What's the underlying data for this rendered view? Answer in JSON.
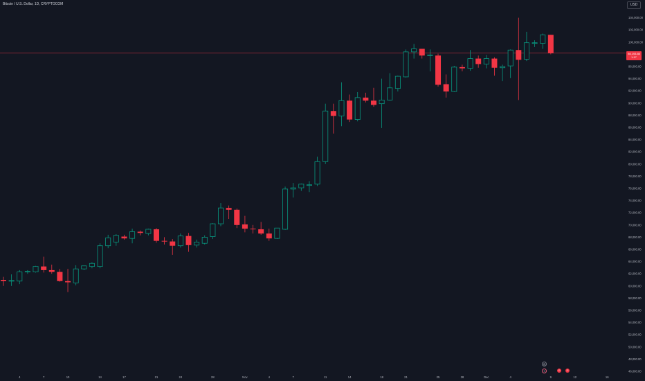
{
  "header": {
    "title": "Bitcoin / U.S. Dollar, 1D, CRYPTOCOM",
    "currency_button": "USD"
  },
  "price_tag": {
    "price": "98,193.85",
    "countdown": "1:17"
  },
  "events": [
    {
      "icon": "dividend-icon",
      "glyph": "◎",
      "color": "#787b86"
    },
    {
      "icon": "flash-icon",
      "glyph": "ϟ",
      "color": "#e05b7a"
    },
    {
      "icon": "earnings-icon",
      "glyph": "☺",
      "color": "#f23645"
    },
    {
      "icon": "earnings-icon",
      "glyph": "☺",
      "color": "#f23645"
    }
  ],
  "colors": {
    "up": "#089981",
    "down": "#f23645",
    "background": "#131722",
    "axis_text": "#b2b5be",
    "price_line": "#f23645"
  },
  "chart_data": {
    "type": "candlestick",
    "title": "Bitcoin / U.S. Dollar, 1D, CRYPTOCOM",
    "ylim": [
      46000,
      106000
    ],
    "y_ticks": [
      "46,000.00",
      "48,000.00",
      "50,000.00",
      "52,000.00",
      "54,000.00",
      "56,000.00",
      "58,000.00",
      "60,000.00",
      "62,000.00",
      "64,000.00",
      "66,000.00",
      "68,000.00",
      "70,000.00",
      "72,000.00",
      "74,000.00",
      "76,000.00",
      "78,000.00",
      "80,000.00",
      "82,000.00",
      "84,000.00",
      "86,000.00",
      "88,000.00",
      "90,000.00",
      "92,000.00",
      "94,000.00",
      "96,000.00",
      "98,000.00",
      "100,000.00",
      "102,000.00",
      "104,000.00"
    ],
    "x_ticks": [
      {
        "label": "4",
        "index": 2
      },
      {
        "label": "7",
        "index": 5
      },
      {
        "label": "10",
        "index": 8
      },
      {
        "label": "14",
        "index": 12
      },
      {
        "label": "17",
        "index": 15
      },
      {
        "label": "21",
        "index": 19
      },
      {
        "label": "24",
        "index": 22
      },
      {
        "label": "28",
        "index": 26
      },
      {
        "label": "Nov",
        "index": 30
      },
      {
        "label": "4",
        "index": 33
      },
      {
        "label": "7",
        "index": 36
      },
      {
        "label": "11",
        "index": 40
      },
      {
        "label": "14",
        "index": 43
      },
      {
        "label": "18",
        "index": 47
      },
      {
        "label": "21",
        "index": 50
      },
      {
        "label": "25",
        "index": 54
      },
      {
        "label": "28",
        "index": 57
      },
      {
        "label": "Dec",
        "index": 60
      },
      {
        "label": "4",
        "index": 63
      },
      {
        "label": "9",
        "index": 68
      },
      {
        "label": "12",
        "index": 71
      },
      {
        "label": "16",
        "index": 75
      }
    ],
    "current_price": 98193.85,
    "candles": [
      {
        "o": 61000,
        "h": 61500,
        "l": 60000,
        "c": 60800
      },
      {
        "o": 60800,
        "h": 61900,
        "l": 60000,
        "c": 60900
      },
      {
        "o": 60800,
        "h": 62600,
        "l": 60300,
        "c": 62300
      },
      {
        "o": 62300,
        "h": 62600,
        "l": 62000,
        "c": 62400
      },
      {
        "o": 62300,
        "h": 63300,
        "l": 62200,
        "c": 63200
      },
      {
        "o": 63200,
        "h": 64800,
        "l": 62200,
        "c": 62600
      },
      {
        "o": 62600,
        "h": 63500,
        "l": 62000,
        "c": 62300
      },
      {
        "o": 62300,
        "h": 62800,
        "l": 60700,
        "c": 60800
      },
      {
        "o": 60800,
        "h": 62800,
        "l": 59000,
        "c": 60600
      },
      {
        "o": 60500,
        "h": 63400,
        "l": 60100,
        "c": 62800
      },
      {
        "o": 62800,
        "h": 63300,
        "l": 62600,
        "c": 63300
      },
      {
        "o": 63200,
        "h": 63900,
        "l": 62900,
        "c": 63700
      },
      {
        "o": 63200,
        "h": 67000,
        "l": 62900,
        "c": 66600
      },
      {
        "o": 66600,
        "h": 68400,
        "l": 66200,
        "c": 67900
      },
      {
        "o": 67200,
        "h": 68500,
        "l": 66600,
        "c": 68300
      },
      {
        "o": 68100,
        "h": 68400,
        "l": 67600,
        "c": 67800
      },
      {
        "o": 67800,
        "h": 69400,
        "l": 67000,
        "c": 68900
      },
      {
        "o": 68900,
        "h": 69100,
        "l": 68300,
        "c": 68700
      },
      {
        "o": 68600,
        "h": 69400,
        "l": 68300,
        "c": 69300
      },
      {
        "o": 69300,
        "h": 69500,
        "l": 67100,
        "c": 67400
      },
      {
        "o": 67400,
        "h": 68000,
        "l": 66800,
        "c": 67300
      },
      {
        "o": 67300,
        "h": 67700,
        "l": 65100,
        "c": 66600
      },
      {
        "o": 66600,
        "h": 68600,
        "l": 66300,
        "c": 68200
      },
      {
        "o": 68200,
        "h": 68700,
        "l": 65600,
        "c": 66700
      },
      {
        "o": 66700,
        "h": 67600,
        "l": 66300,
        "c": 67200
      },
      {
        "o": 67000,
        "h": 68300,
        "l": 66800,
        "c": 68000
      },
      {
        "o": 68100,
        "h": 70300,
        "l": 67700,
        "c": 70200
      },
      {
        "o": 70200,
        "h": 73600,
        "l": 69800,
        "c": 72800
      },
      {
        "o": 72800,
        "h": 73200,
        "l": 71000,
        "c": 72500
      },
      {
        "o": 72500,
        "h": 72700,
        "l": 69500,
        "c": 70000
      },
      {
        "o": 70100,
        "h": 71500,
        "l": 68800,
        "c": 69400
      },
      {
        "o": 69400,
        "h": 70000,
        "l": 68600,
        "c": 69300
      },
      {
        "o": 69300,
        "h": 70500,
        "l": 68400,
        "c": 68600
      },
      {
        "o": 68600,
        "h": 69400,
        "l": 67400,
        "c": 67800
      },
      {
        "o": 67800,
        "h": 69500,
        "l": 67700,
        "c": 69500
      },
      {
        "o": 69300,
        "h": 76300,
        "l": 69200,
        "c": 75900
      },
      {
        "o": 75900,
        "h": 76900,
        "l": 74500,
        "c": 76100
      },
      {
        "o": 76100,
        "h": 76800,
        "l": 75600,
        "c": 76700
      },
      {
        "o": 76600,
        "h": 77200,
        "l": 75400,
        "c": 76600
      },
      {
        "o": 76700,
        "h": 81200,
        "l": 76400,
        "c": 80400
      },
      {
        "o": 80400,
        "h": 89900,
        "l": 80000,
        "c": 88700
      },
      {
        "o": 88700,
        "h": 89900,
        "l": 85000,
        "c": 87900
      },
      {
        "o": 87900,
        "h": 93400,
        "l": 86200,
        "c": 90400
      },
      {
        "o": 90400,
        "h": 91400,
        "l": 86900,
        "c": 87300
      },
      {
        "o": 87300,
        "h": 91800,
        "l": 87000,
        "c": 90900
      },
      {
        "o": 90900,
        "h": 91700,
        "l": 90100,
        "c": 90400
      },
      {
        "o": 90400,
        "h": 92500,
        "l": 89400,
        "c": 89700
      },
      {
        "o": 89900,
        "h": 94000,
        "l": 85900,
        "c": 90500
      },
      {
        "o": 90500,
        "h": 94900,
        "l": 90400,
        "c": 92500
      },
      {
        "o": 92400,
        "h": 94500,
        "l": 91900,
        "c": 94400
      },
      {
        "o": 94300,
        "h": 98800,
        "l": 94200,
        "c": 98400
      },
      {
        "o": 98400,
        "h": 99700,
        "l": 97300,
        "c": 98900
      },
      {
        "o": 98900,
        "h": 98900,
        "l": 97300,
        "c": 97800
      },
      {
        "o": 97800,
        "h": 98800,
        "l": 95200,
        "c": 97900
      },
      {
        "o": 97800,
        "h": 98100,
        "l": 92700,
        "c": 93000
      },
      {
        "o": 93100,
        "h": 94700,
        "l": 90900,
        "c": 91900
      },
      {
        "o": 91900,
        "h": 96100,
        "l": 91800,
        "c": 95900
      },
      {
        "o": 95900,
        "h": 96300,
        "l": 95200,
        "c": 95700
      },
      {
        "o": 95700,
        "h": 98700,
        "l": 95300,
        "c": 97300
      },
      {
        "o": 97300,
        "h": 97800,
        "l": 95800,
        "c": 96400
      },
      {
        "o": 96400,
        "h": 97900,
        "l": 95700,
        "c": 97300
      },
      {
        "o": 97300,
        "h": 97500,
        "l": 94500,
        "c": 95800
      },
      {
        "o": 95800,
        "h": 96300,
        "l": 93600,
        "c": 96000
      },
      {
        "o": 96100,
        "h": 98800,
        "l": 94100,
        "c": 98700
      },
      {
        "o": 98700,
        "h": 104000,
        "l": 90500,
        "c": 97100
      },
      {
        "o": 97200,
        "h": 101700,
        "l": 96900,
        "c": 99900
      },
      {
        "o": 99800,
        "h": 100300,
        "l": 99200,
        "c": 99900
      },
      {
        "o": 99800,
        "h": 101400,
        "l": 98900,
        "c": 101200
      },
      {
        "o": 101200,
        "h": 101200,
        "l": 98000,
        "c": 98200
      }
    ]
  }
}
